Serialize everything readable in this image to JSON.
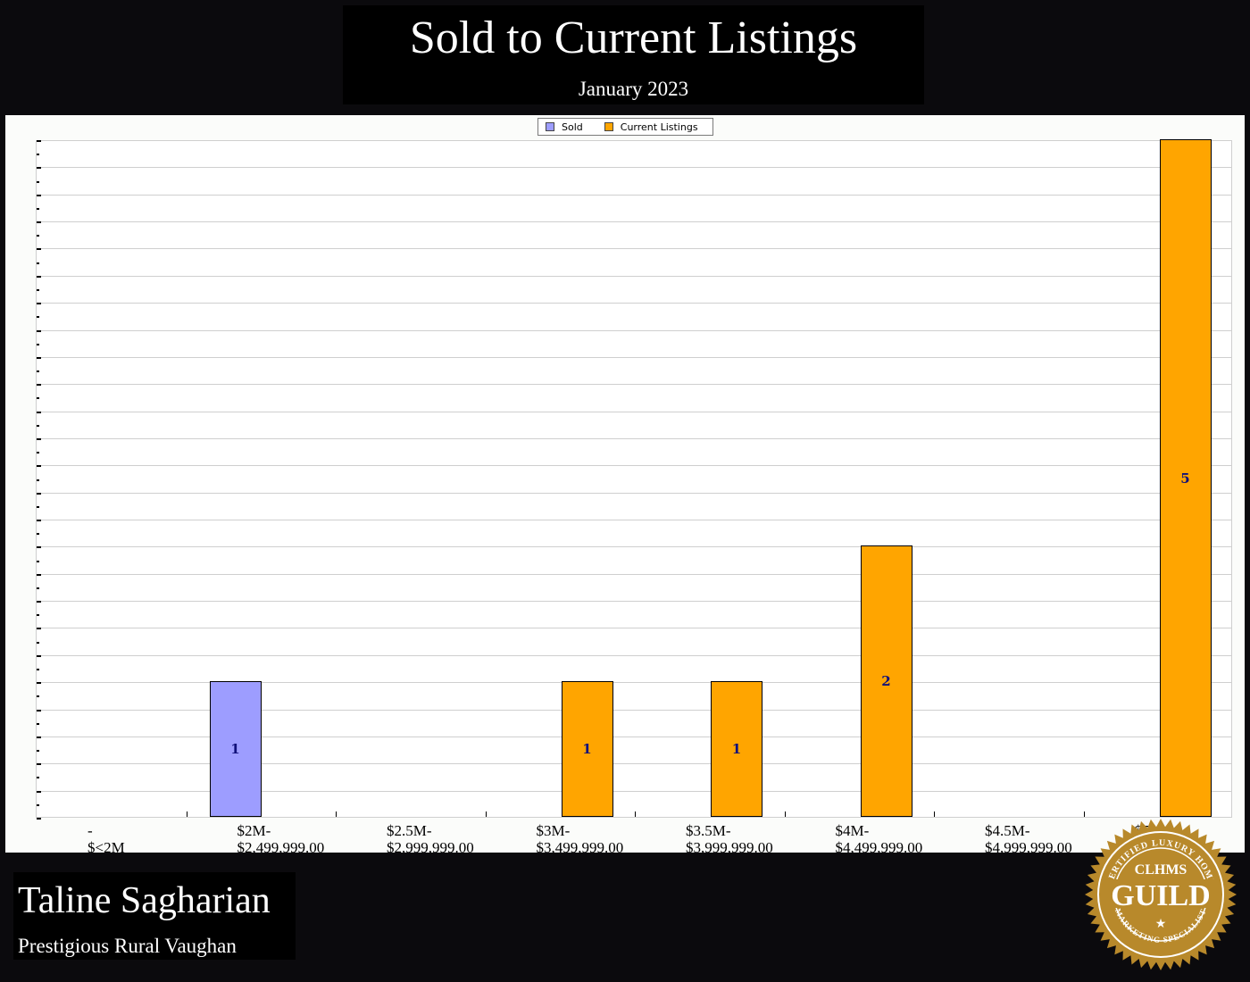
{
  "header": {
    "title": "Sold to Current Listings",
    "subtitle": "January 2023"
  },
  "legend": [
    {
      "label": "Sold",
      "color": "#9d9dff"
    },
    {
      "label": "Current Listings",
      "color": "#ffa500"
    }
  ],
  "footer": {
    "agent_name": "Taline Sagharian",
    "area": "Prestigious Rural Vaughan"
  },
  "badge": {
    "top_text": "CERTIFIED LUXURY HOME",
    "abbr": "CLHMS",
    "main": "GUILD",
    "bottom_text": "MARKETING SPECIALIST"
  },
  "chart_data": {
    "type": "bar",
    "title": "Sold to Current Listings",
    "subtitle": "January 2023",
    "categories": [
      "-\n$<2M",
      "$2M-\n$2,499,999.00",
      "$2.5M-\n$2,999,999.00",
      "$3M-\n$3,499,999.00",
      "$3.5M-\n$3,999,999.00",
      "$4M-\n$4,499,999.00",
      "$4.5M-\n$4,999,999.00",
      "$5M+"
    ],
    "series": [
      {
        "name": "Sold",
        "color": "#9d9dff",
        "values": [
          0,
          1,
          0,
          0,
          0,
          0,
          0,
          0
        ]
      },
      {
        "name": "Current Listings",
        "color": "#ffa500",
        "values": [
          0,
          0,
          0,
          1,
          1,
          2,
          0,
          5
        ]
      }
    ],
    "xlabel": "",
    "ylabel": "",
    "ylim": [
      0,
      5
    ],
    "grid": true,
    "legend_position": "top",
    "stacked": false,
    "value_labels": true
  }
}
